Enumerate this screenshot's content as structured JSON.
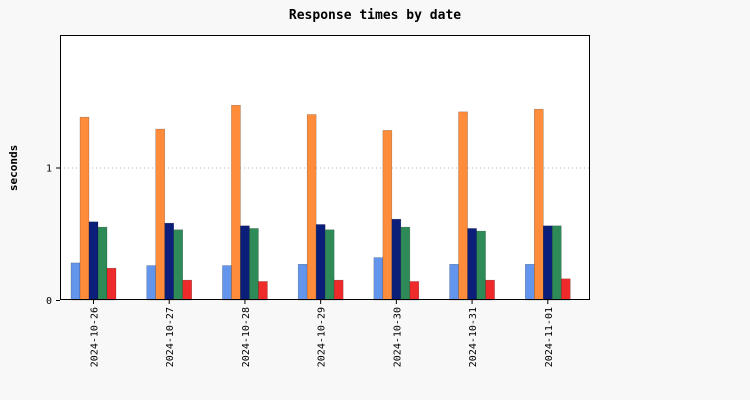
{
  "chart_data": {
    "type": "bar",
    "title": "Response times by date",
    "xlabel": "",
    "ylabel": "seconds",
    "ylim": [
      0,
      2
    ],
    "yticks": [
      0,
      1
    ],
    "grid": "horizontal dotted at y=1",
    "legend": "none",
    "categories": [
      "2024-10-26",
      "2024-10-27",
      "2024-10-28",
      "2024-10-29",
      "2024-10-30",
      "2024-10-31",
      "2024-11-01"
    ],
    "series": [
      {
        "color": "#6495ed",
        "values": [
          0.28,
          0.26,
          0.26,
          0.27,
          0.32,
          0.27,
          0.27
        ]
      },
      {
        "color": "#ff8c3a",
        "values": [
          1.38,
          1.29,
          1.47,
          1.4,
          1.28,
          1.42,
          1.44
        ]
      },
      {
        "color": "#0b1f7a",
        "values": [
          0.59,
          0.58,
          0.56,
          0.57,
          0.61,
          0.54,
          0.56
        ]
      },
      {
        "color": "#2e8b57",
        "values": [
          0.55,
          0.53,
          0.54,
          0.53,
          0.55,
          0.52,
          0.56
        ]
      },
      {
        "color": "#ee2a2a",
        "values": [
          0.24,
          0.15,
          0.14,
          0.15,
          0.14,
          0.15,
          0.16
        ]
      }
    ]
  }
}
